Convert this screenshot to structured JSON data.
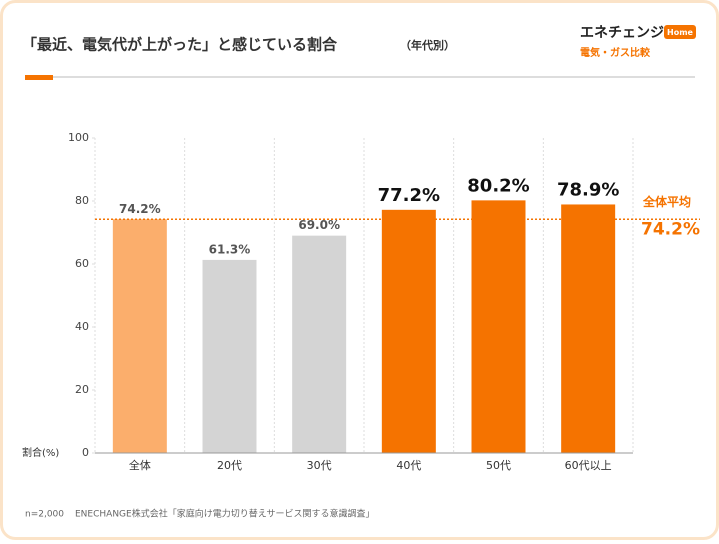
{
  "logo": {
    "brand": "エネチェンジ",
    "badge": "Home",
    "tagline": "電気・ガス比較"
  },
  "chart_data": {
    "type": "bar",
    "title": "「最近、電気代が上がった」と感じている割合",
    "subtitle": "（年代別）",
    "y_label": "割合(%)",
    "categories": [
      "全体",
      "20代",
      "30代",
      "40代",
      "50代",
      "60代以上"
    ],
    "values": [
      74.2,
      61.3,
      69.0,
      77.2,
      80.2,
      78.9
    ],
    "value_labels": [
      "74.2%",
      "61.3%",
      "69.0%",
      "77.2%",
      "80.2%",
      "78.9%"
    ],
    "colors": [
      "#fbae6c",
      "#d4d4d4",
      "#d4d4d4",
      "#f57300",
      "#f57300",
      "#f57300"
    ],
    "highlight_color": "#f57300",
    "ylim": [
      0,
      100
    ],
    "yticks": [
      0,
      20,
      40,
      60,
      80,
      100
    ],
    "average": {
      "label": "全体平均",
      "value": 74.2,
      "value_label": "74.2%",
      "color": "#f57300"
    },
    "note": "n=2,000",
    "source": "ENECHANGE株式会社「家庭向け電力切り替えサービス関する意識調査」"
  }
}
